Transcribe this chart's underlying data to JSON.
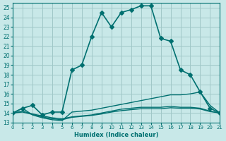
{
  "xlabel": "Humidex (Indice chaleur)",
  "ylabel": "",
  "bg_color": "#c8e8e8",
  "grid_color": "#a0c8c8",
  "line_color": "#007070",
  "xlim": [
    0,
    21
  ],
  "ylim": [
    13,
    25.5
  ],
  "xticks": [
    0,
    1,
    2,
    3,
    4,
    5,
    6,
    7,
    8,
    9,
    10,
    11,
    12,
    13,
    14,
    15,
    16,
    17,
    18,
    19,
    20,
    21
  ],
  "yticks": [
    13,
    14,
    15,
    16,
    17,
    18,
    19,
    20,
    21,
    22,
    23,
    24,
    25
  ],
  "series": [
    {
      "x": [
        0,
        1,
        2,
        3,
        4,
        5,
        6,
        7,
        8,
        9,
        10,
        11,
        12,
        13,
        14,
        15,
        16,
        17,
        18,
        19,
        20,
        21
      ],
      "y": [
        14,
        14.5,
        14.8,
        13.8,
        14.1,
        14.1,
        18.5,
        19,
        22,
        24.5,
        23,
        24.5,
        24.8,
        25.2,
        25.2,
        21.8,
        21.5,
        18.5,
        18,
        16.2,
        14.5,
        14
      ],
      "marker": "D",
      "markersize": 3,
      "linewidth": 1.2
    },
    {
      "x": [
        0,
        1,
        2,
        3,
        4,
        5,
        6,
        7,
        8,
        9,
        10,
        11,
        12,
        13,
        14,
        15,
        16,
        17,
        18,
        19,
        20,
        21
      ],
      "y": [
        14,
        14.5,
        13.8,
        13.5,
        13.3,
        13.2,
        14.1,
        14.2,
        14.3,
        14.5,
        14.7,
        14.9,
        15.1,
        15.3,
        15.5,
        15.7,
        15.9,
        15.9,
        16.0,
        16.2,
        14.8,
        14
      ],
      "marker": null,
      "markersize": 0,
      "linewidth": 1.0
    },
    {
      "x": [
        0,
        1,
        2,
        3,
        4,
        5,
        6,
        7,
        8,
        9,
        10,
        11,
        12,
        13,
        14,
        15,
        16,
        17,
        18,
        19,
        20,
        21
      ],
      "y": [
        14,
        14.2,
        13.9,
        13.7,
        13.5,
        13.4,
        13.6,
        13.7,
        13.8,
        14.0,
        14.2,
        14.4,
        14.5,
        14.6,
        14.6,
        14.6,
        14.7,
        14.6,
        14.6,
        14.5,
        14.2,
        14
      ],
      "marker": null,
      "markersize": 0,
      "linewidth": 1.0
    },
    {
      "x": [
        0,
        1,
        2,
        3,
        4,
        5,
        6,
        7,
        8,
        9,
        10,
        11,
        12,
        13,
        14,
        15,
        16,
        17,
        18,
        19,
        20,
        21
      ],
      "y": [
        14,
        14.1,
        13.85,
        13.6,
        13.4,
        13.3,
        13.55,
        13.65,
        13.75,
        13.9,
        14.1,
        14.25,
        14.35,
        14.45,
        14.45,
        14.45,
        14.55,
        14.5,
        14.5,
        14.42,
        14.15,
        14
      ],
      "marker": null,
      "markersize": 0,
      "linewidth": 1.0
    }
  ]
}
